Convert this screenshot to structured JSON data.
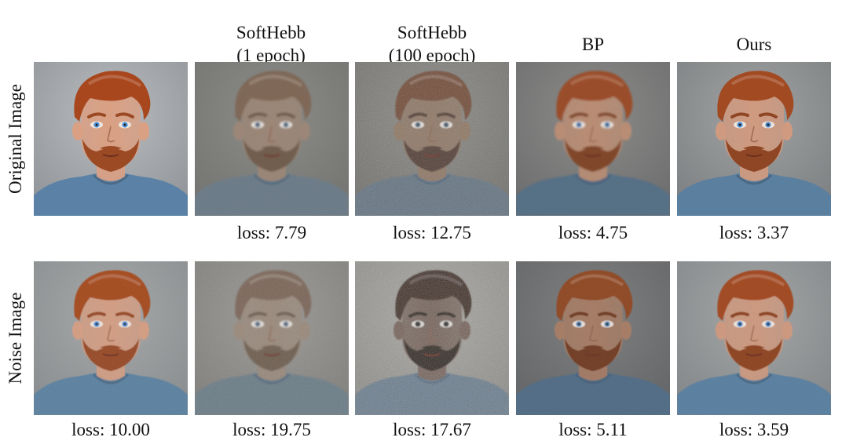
{
  "columns": [
    {
      "header_line1": "",
      "header_line2": ""
    },
    {
      "header_line1": "SoftHebb",
      "header_line2": "(1 epoch)"
    },
    {
      "header_line1": "SoftHebb",
      "header_line2": "(100 epoch)"
    },
    {
      "header_line1": "BP",
      "header_line2": ""
    },
    {
      "header_line1": "Ours",
      "header_line2": ""
    }
  ],
  "rows": [
    {
      "label": "Original Image",
      "captions": [
        "",
        "loss: 7.79",
        "loss: 12.75",
        "loss: 4.75",
        "loss: 3.37"
      ]
    },
    {
      "label": "Noise Image",
      "captions": [
        "loss: 10.00",
        "loss: 19.75",
        "loss: 17.67",
        "loss: 5.11",
        "loss: 3.59"
      ]
    }
  ],
  "image_content": "portrait of a man with red hair, blue eyes and a beard wearing a blue t-shirt"
}
